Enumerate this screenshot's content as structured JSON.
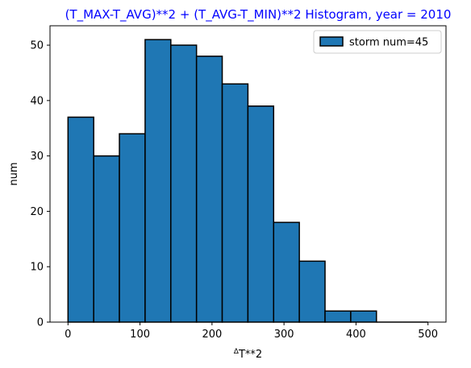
{
  "chart_data": {
    "type": "bar",
    "title": "(T_MAX-T_AVG)**2 + (T_AVG-T_MIN)**2 Histogram, year = 2010",
    "title_color": "#0000ff",
    "xlabel_delta": "Δ",
    "xlabel_main": "T**2",
    "ylabel": "num",
    "bin_edges": [
      0,
      35.7,
      71.4,
      107.1,
      142.8,
      178.5,
      214.2,
      249.9,
      285.6,
      321.3,
      357.0,
      392.7,
      428.4,
      464.1,
      499.8
    ],
    "values": [
      37,
      30,
      34,
      51,
      50,
      48,
      43,
      39,
      18,
      11,
      2,
      2,
      0,
      0
    ],
    "xlim": [
      -25,
      525
    ],
    "ylim": [
      0,
      53.5
    ],
    "xticks": [
      0,
      100,
      200,
      300,
      400,
      500
    ],
    "yticks": [
      0,
      10,
      20,
      30,
      40,
      50
    ],
    "bar_color": "#1f77b4",
    "edge_color": "#000000",
    "grid": false,
    "legend": {
      "placement": "top-right",
      "label": "storm num=45"
    }
  }
}
